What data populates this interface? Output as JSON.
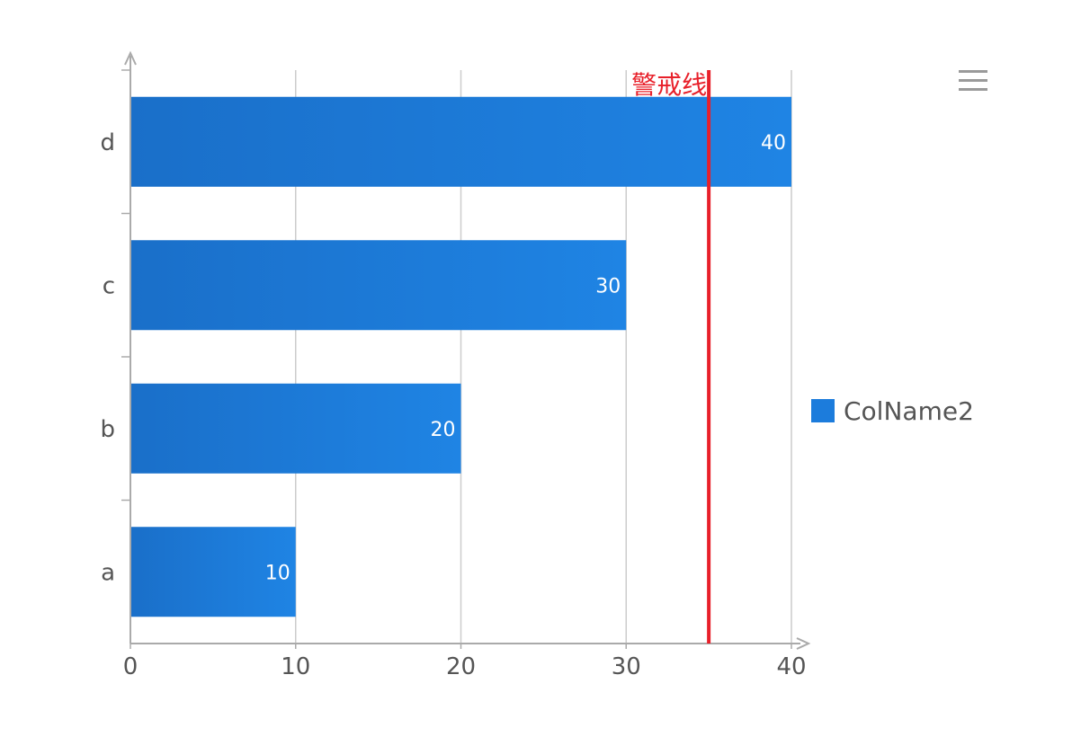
{
  "chart_data": {
    "type": "bar",
    "orientation": "horizontal",
    "categories": [
      "a",
      "b",
      "c",
      "d"
    ],
    "series": [
      {
        "name": "ColName2",
        "values": [
          10,
          20,
          30,
          40
        ],
        "color": "#1c7cdc"
      }
    ],
    "xlim": [
      0,
      40
    ],
    "xticks": [
      0,
      10,
      20,
      30,
      40
    ],
    "grid": true,
    "data_labels": true,
    "legend_position": "right",
    "reference_line": {
      "value": 35,
      "label": "警戒线",
      "color": "#e8202a"
    },
    "title": "",
    "xlabel": "",
    "ylabel": ""
  },
  "toolbar": {
    "menu_icon": "hamburger-menu-icon"
  }
}
